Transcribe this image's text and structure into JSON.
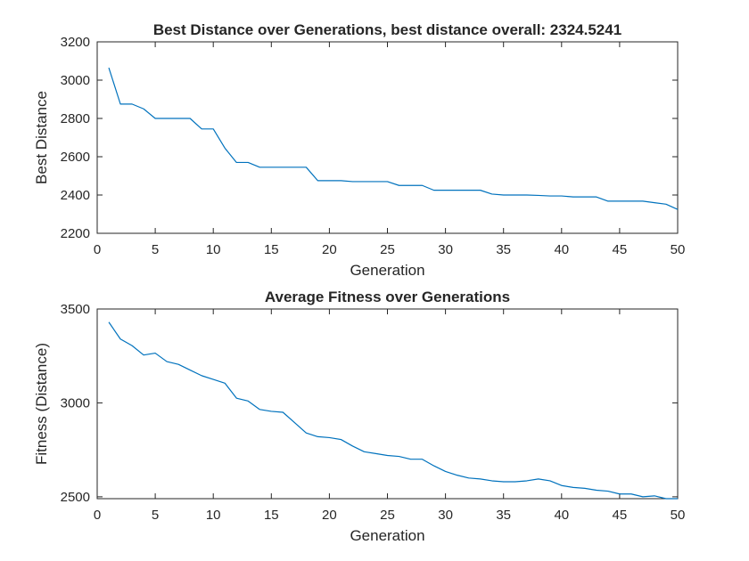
{
  "chart_data": [
    {
      "type": "line",
      "title": "Best Distance over Generations, best distance overall: 2324.5241",
      "xlabel": "Generation",
      "ylabel": "Best Distance",
      "xlim": [
        0,
        50
      ],
      "ylim": [
        2200,
        3200
      ],
      "xticks": [
        0,
        5,
        10,
        15,
        20,
        25,
        30,
        35,
        40,
        45,
        50
      ],
      "yticks": [
        2200,
        2400,
        2600,
        2800,
        3000,
        3200
      ],
      "grid": false,
      "series": [
        {
          "color": "#0072BD",
          "x": [
            1,
            2,
            3,
            4,
            5,
            6,
            7,
            8,
            9,
            10,
            11,
            12,
            13,
            14,
            15,
            16,
            17,
            18,
            19,
            20,
            21,
            22,
            23,
            24,
            25,
            26,
            27,
            28,
            29,
            30,
            31,
            32,
            33,
            34,
            35,
            36,
            37,
            38,
            39,
            40,
            41,
            42,
            43,
            44,
            45,
            46,
            47,
            48,
            49,
            50
          ],
          "y": [
            3065,
            2875,
            2875,
            2850,
            2800,
            2800,
            2800,
            2800,
            2745,
            2745,
            2645,
            2570,
            2570,
            2545,
            2545,
            2545,
            2545,
            2545,
            2475,
            2475,
            2475,
            2470,
            2470,
            2470,
            2470,
            2450,
            2450,
            2450,
            2425,
            2425,
            2425,
            2425,
            2425,
            2405,
            2400,
            2400,
            2400,
            2398,
            2395,
            2395,
            2390,
            2390,
            2390,
            2368,
            2368,
            2368,
            2368,
            2360,
            2352,
            2324.5
          ]
        }
      ]
    },
    {
      "type": "line",
      "title": "Average Fitness over Generations",
      "xlabel": "Generation",
      "ylabel": "Fitness (Distance)",
      "xlim": [
        0,
        50
      ],
      "ylim": [
        2490,
        3500
      ],
      "xticks": [
        0,
        5,
        10,
        15,
        20,
        25,
        30,
        35,
        40,
        45,
        50
      ],
      "yticks": [
        2500,
        3000,
        3500
      ],
      "grid": false,
      "series": [
        {
          "color": "#0072BD",
          "x": [
            1,
            2,
            3,
            4,
            5,
            6,
            7,
            8,
            9,
            10,
            11,
            12,
            13,
            14,
            15,
            16,
            17,
            18,
            19,
            20,
            21,
            22,
            23,
            24,
            25,
            26,
            27,
            28,
            29,
            30,
            31,
            32,
            33,
            34,
            35,
            36,
            37,
            38,
            39,
            40,
            41,
            42,
            43,
            44,
            45,
            46,
            47,
            48,
            49,
            50
          ],
          "y": [
            3430,
            3340,
            3305,
            3255,
            3265,
            3220,
            3205,
            3175,
            3145,
            3125,
            3105,
            3025,
            3010,
            2965,
            2955,
            2950,
            2895,
            2840,
            2820,
            2815,
            2805,
            2770,
            2740,
            2730,
            2720,
            2715,
            2700,
            2700,
            2665,
            2635,
            2615,
            2600,
            2595,
            2585,
            2580,
            2580,
            2585,
            2595,
            2585,
            2560,
            2550,
            2545,
            2535,
            2530,
            2515,
            2515,
            2500,
            2505,
            2490,
            2490
          ]
        }
      ]
    }
  ]
}
